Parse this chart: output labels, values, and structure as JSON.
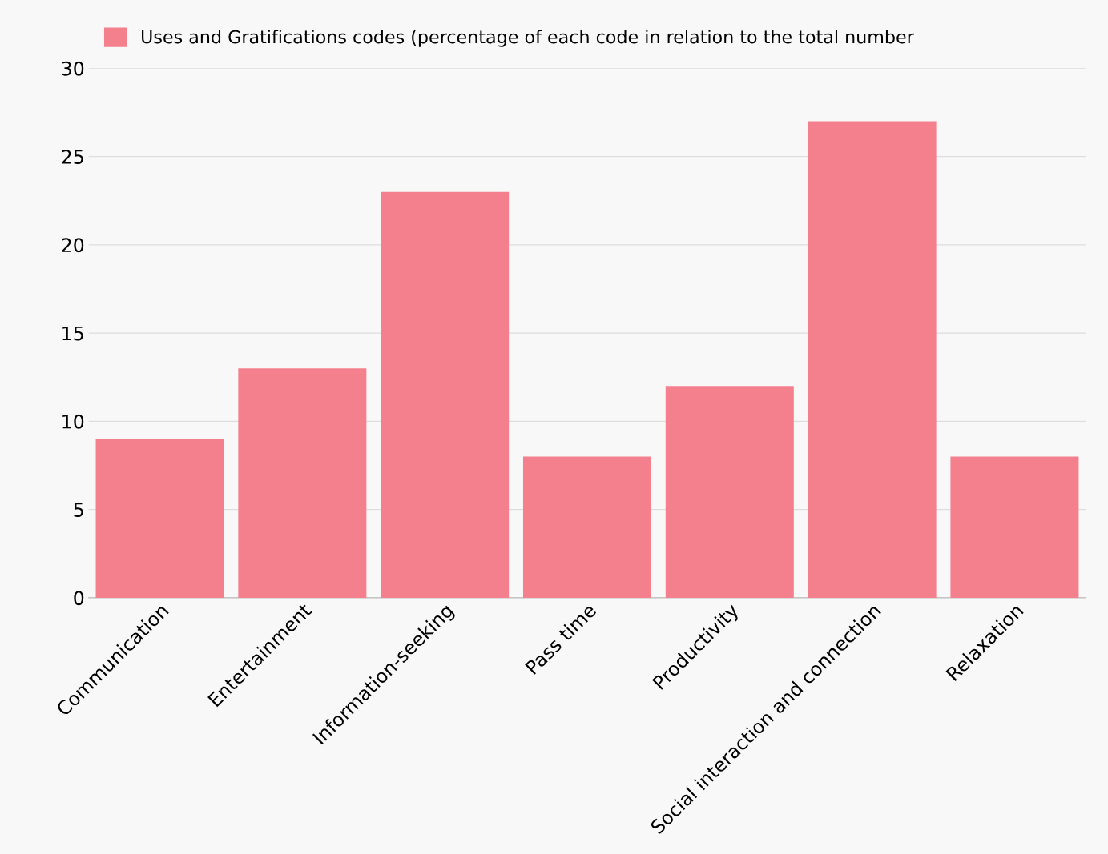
{
  "chart_data": {
    "type": "bar",
    "categories": [
      "Communication",
      "Entertainment",
      "Information-seeking",
      "Pass time",
      "Productivity",
      "Social interaction and connection",
      "Relaxation"
    ],
    "series": [
      {
        "name": "Uses and Gratifications codes (percentage of each code in relation to the total number",
        "color": "#f4808e",
        "values": [
          9,
          13,
          23,
          8,
          12,
          27,
          8
        ]
      }
    ],
    "ylim": [
      0,
      30
    ],
    "yticks": [
      0,
      5,
      10,
      15,
      20,
      25,
      30
    ],
    "grid": "y",
    "legend": "top"
  }
}
